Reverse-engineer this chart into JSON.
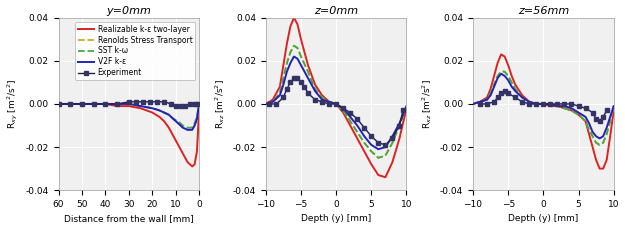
{
  "fig_width": 6.25,
  "fig_height": 2.29,
  "dpi": 100,
  "panels": [
    {
      "title": "y=0mm",
      "xlabel": "Distance from the wall [mm]",
      "ylabel": "R$_{xy}$ [m$^2$/s$^2$]",
      "xlim": [
        60,
        0
      ],
      "ylim": [
        -0.04,
        0.04
      ],
      "yticks": [
        -0.04,
        -0.02,
        0.0,
        0.02,
        0.04
      ],
      "xticks": [
        60,
        50,
        40,
        30,
        20,
        10,
        0
      ],
      "grid": true,
      "legend": true
    },
    {
      "title": "z=0mm",
      "xlabel": "Depth (y) [mm]",
      "ylabel": "R$_{xz}$ [m$^2$/s$^2$]",
      "xlim": [
        -10,
        10
      ],
      "ylim": [
        -0.04,
        0.04
      ],
      "yticks": [
        -0.04,
        -0.02,
        0.0,
        0.02,
        0.04
      ],
      "xticks": [
        -10,
        -5,
        0,
        5,
        10
      ],
      "grid": true,
      "legend": false
    },
    {
      "title": "z=56mm",
      "xlabel": "Depth (y) [mm]",
      "ylabel": "R$_{xz}$ [m$^2$/s$^2$]",
      "xlim": [
        -10,
        10
      ],
      "ylim": [
        -0.04,
        0.04
      ],
      "yticks": [
        -0.04,
        -0.02,
        0.0,
        0.02,
        0.04
      ],
      "xticks": [
        -10,
        -5,
        0,
        5,
        10
      ],
      "grid": true,
      "legend": false
    }
  ],
  "series": {
    "experiment": {
      "label": "Experiment",
      "color": "#222244",
      "linestyle": "-",
      "marker": "s",
      "markersize": 3,
      "linewidth": 1.0
    },
    "realizable": {
      "label": "Realizable k-ε two-layer",
      "color": "#dd2222",
      "linestyle": "-",
      "linewidth": 1.4
    },
    "v2f": {
      "label": "V2F k-ε",
      "color": "#2222bb",
      "linestyle": "-",
      "linewidth": 1.4
    },
    "rst": {
      "label": "Renolds Stress Transport",
      "color": "#ccaa22",
      "linestyle": "--",
      "linewidth": 1.3
    },
    "sst": {
      "label": "SST k-ω",
      "color": "#44aa44",
      "linestyle": "--",
      "linewidth": 1.3
    }
  },
  "panel1_data": {
    "exp_x": [
      60,
      55,
      50,
      45,
      40,
      35,
      30,
      27,
      24,
      21,
      18,
      15,
      12,
      10,
      8,
      6,
      4,
      2,
      1
    ],
    "exp_y": [
      0.0,
      0.0,
      0.0,
      0.0,
      0.0,
      0.0,
      0.001,
      0.001,
      0.001,
      0.001,
      0.001,
      0.001,
      0.0,
      -0.001,
      -0.001,
      -0.001,
      0.0,
      0.0,
      0.0
    ],
    "realizable_x": [
      60,
      55,
      50,
      45,
      40,
      35,
      30,
      25,
      20,
      17,
      15,
      13,
      11,
      9,
      7,
      5,
      3,
      2,
      1,
      0.5,
      0.1
    ],
    "realizable_y": [
      0.0,
      0.0,
      0.0,
      0.0,
      0.0,
      -0.001,
      -0.001,
      -0.002,
      -0.004,
      -0.006,
      -0.008,
      -0.011,
      -0.015,
      -0.019,
      -0.023,
      -0.027,
      -0.029,
      -0.028,
      -0.022,
      -0.012,
      -0.002
    ],
    "v2f_x": [
      60,
      55,
      50,
      45,
      40,
      35,
      30,
      25,
      20,
      17,
      15,
      13,
      11,
      9,
      7,
      5,
      3,
      2,
      1,
      0.5,
      0.1
    ],
    "v2f_y": [
      0.0,
      0.0,
      0.0,
      0.0,
      0.0,
      0.0,
      0.0,
      -0.001,
      -0.002,
      -0.003,
      -0.004,
      -0.005,
      -0.007,
      -0.009,
      -0.011,
      -0.012,
      -0.012,
      -0.01,
      -0.007,
      -0.003,
      -0.001
    ],
    "rst_x": [
      60,
      55,
      50,
      45,
      40,
      35,
      30,
      25,
      20,
      17,
      15,
      13,
      11,
      9,
      7,
      5,
      3,
      2,
      1,
      0.5,
      0.1
    ],
    "rst_y": [
      0.0,
      0.0,
      0.0,
      0.0,
      0.0,
      0.0,
      0.0,
      -0.001,
      -0.002,
      -0.003,
      -0.004,
      -0.005,
      -0.007,
      -0.009,
      -0.011,
      -0.012,
      -0.012,
      -0.01,
      -0.007,
      -0.003,
      -0.001
    ],
    "sst_x": [
      60,
      55,
      50,
      45,
      40,
      35,
      30,
      25,
      20,
      17,
      15,
      13,
      11,
      9,
      7,
      5,
      3,
      2,
      1,
      0.5,
      0.1
    ],
    "sst_y": [
      0.0,
      0.0,
      0.0,
      0.0,
      0.0,
      0.0,
      0.0,
      -0.001,
      -0.002,
      -0.003,
      -0.004,
      -0.005,
      -0.007,
      -0.008,
      -0.01,
      -0.011,
      -0.011,
      -0.009,
      -0.006,
      -0.003,
      -0.001
    ]
  },
  "panel2_data": {
    "exp_x": [
      -9.5,
      -8.5,
      -7.5,
      -7,
      -6.5,
      -6,
      -5.5,
      -5,
      -4.5,
      -4,
      -3,
      -2,
      -1,
      0,
      1,
      2,
      3,
      4,
      5,
      6,
      7,
      8,
      9,
      9.5
    ],
    "exp_y": [
      0.0,
      0.0,
      0.003,
      0.007,
      0.01,
      0.012,
      0.012,
      0.01,
      0.008,
      0.005,
      0.002,
      0.001,
      0.0,
      0.0,
      -0.002,
      -0.004,
      -0.007,
      -0.011,
      -0.015,
      -0.018,
      -0.019,
      -0.016,
      -0.01,
      -0.003
    ],
    "realizable_x": [
      -10,
      -9,
      -8,
      -7.5,
      -7,
      -6.5,
      -6,
      -5.5,
      -5,
      -4,
      -3,
      -2,
      -1,
      0,
      1,
      2,
      3,
      4,
      5,
      6,
      7,
      8,
      9,
      10
    ],
    "realizable_y": [
      0.0,
      0.002,
      0.008,
      0.018,
      0.028,
      0.036,
      0.04,
      0.037,
      0.03,
      0.018,
      0.009,
      0.004,
      0.001,
      0.0,
      -0.004,
      -0.01,
      -0.016,
      -0.022,
      -0.028,
      -0.033,
      -0.034,
      -0.027,
      -0.016,
      -0.002
    ],
    "v2f_x": [
      -10,
      -9,
      -8,
      -7.5,
      -7,
      -6.5,
      -6,
      -5.5,
      -5,
      -4,
      -3,
      -2,
      -1,
      0,
      1,
      2,
      3,
      4,
      5,
      6,
      7,
      8,
      9,
      10
    ],
    "v2f_y": [
      0.0,
      0.001,
      0.004,
      0.009,
      0.015,
      0.019,
      0.022,
      0.021,
      0.018,
      0.012,
      0.006,
      0.002,
      0.001,
      0.0,
      -0.002,
      -0.006,
      -0.01,
      -0.015,
      -0.019,
      -0.021,
      -0.02,
      -0.015,
      -0.009,
      -0.001
    ],
    "rst_x": [
      -10,
      -9,
      -8,
      -7.5,
      -7,
      -6.5,
      -6,
      -5.5,
      -5,
      -4,
      -3,
      -2,
      -1,
      0,
      1,
      2,
      3,
      4,
      5,
      6,
      7,
      8,
      9,
      10
    ],
    "rst_y": [
      0.0,
      0.001,
      0.005,
      0.012,
      0.019,
      0.024,
      0.027,
      0.026,
      0.022,
      0.015,
      0.007,
      0.003,
      0.001,
      0.0,
      -0.003,
      -0.008,
      -0.013,
      -0.018,
      -0.022,
      -0.025,
      -0.024,
      -0.018,
      -0.01,
      -0.001
    ],
    "sst_x": [
      -10,
      -9,
      -8,
      -7.5,
      -7,
      -6.5,
      -6,
      -5.5,
      -5,
      -4,
      -3,
      -2,
      -1,
      0,
      1,
      2,
      3,
      4,
      5,
      6,
      7,
      8,
      9,
      10
    ],
    "sst_y": [
      0.0,
      0.001,
      0.005,
      0.012,
      0.019,
      0.024,
      0.027,
      0.026,
      0.022,
      0.015,
      0.007,
      0.003,
      0.001,
      0.0,
      -0.003,
      -0.008,
      -0.013,
      -0.018,
      -0.022,
      -0.025,
      -0.024,
      -0.018,
      -0.01,
      -0.001
    ]
  },
  "panel3_data": {
    "exp_x": [
      -9,
      -8,
      -7,
      -6.5,
      -6,
      -5.5,
      -5,
      -4,
      -3,
      -2,
      -1,
      0,
      1,
      2,
      3,
      4,
      5,
      6,
      7,
      7.5,
      8,
      8.5,
      9
    ],
    "exp_y": [
      0.0,
      0.0,
      0.001,
      0.003,
      0.005,
      0.006,
      0.005,
      0.003,
      0.001,
      0.0,
      0.0,
      0.0,
      0.0,
      0.0,
      0.0,
      0.0,
      -0.001,
      -0.002,
      -0.004,
      -0.007,
      -0.008,
      -0.006,
      -0.003
    ],
    "realizable_x": [
      -10,
      -9,
      -8,
      -7.5,
      -7,
      -6.5,
      -6,
      -5.5,
      -5,
      -4.5,
      -4,
      -3,
      -2,
      -1,
      0,
      1,
      2,
      3,
      4,
      5,
      6,
      6.5,
      7,
      7.5,
      8,
      8.5,
      9,
      9.5,
      10
    ],
    "realizable_y": [
      0.0,
      0.001,
      0.003,
      0.007,
      0.013,
      0.019,
      0.023,
      0.022,
      0.018,
      0.013,
      0.009,
      0.004,
      0.001,
      0.0,
      0.0,
      -0.001,
      -0.001,
      -0.002,
      -0.003,
      -0.005,
      -0.008,
      -0.014,
      -0.02,
      -0.026,
      -0.03,
      -0.03,
      -0.026,
      -0.015,
      -0.003
    ],
    "v2f_x": [
      -10,
      -9,
      -8,
      -7.5,
      -7,
      -6.5,
      -6,
      -5.5,
      -5,
      -4.5,
      -4,
      -3,
      -2,
      -1,
      0,
      1,
      2,
      3,
      4,
      5,
      6,
      6.5,
      7,
      7.5,
      8,
      8.5,
      9,
      9.5,
      10
    ],
    "v2f_y": [
      0.0,
      0.001,
      0.002,
      0.004,
      0.008,
      0.012,
      0.014,
      0.013,
      0.011,
      0.008,
      0.006,
      0.003,
      0.001,
      0.0,
      0.0,
      0.0,
      -0.001,
      -0.001,
      -0.002,
      -0.004,
      -0.006,
      -0.009,
      -0.013,
      -0.015,
      -0.016,
      -0.015,
      -0.011,
      -0.006,
      -0.001
    ],
    "rst_x": [
      -10,
      -9,
      -8,
      -7.5,
      -7,
      -6.5,
      -6,
      -5.5,
      -5,
      -4.5,
      -4,
      -3,
      -2,
      -1,
      0,
      1,
      2,
      3,
      4,
      5,
      6,
      6.5,
      7,
      7.5,
      8,
      8.5,
      9,
      9.5,
      10
    ],
    "rst_y": [
      0.0,
      0.001,
      0.002,
      0.005,
      0.009,
      0.013,
      0.015,
      0.015,
      0.013,
      0.01,
      0.007,
      0.003,
      0.001,
      0.0,
      0.0,
      0.0,
      -0.001,
      -0.002,
      -0.003,
      -0.005,
      -0.008,
      -0.012,
      -0.015,
      -0.018,
      -0.019,
      -0.018,
      -0.014,
      -0.008,
      -0.001
    ],
    "sst_x": [
      -10,
      -9,
      -8,
      -7.5,
      -7,
      -6.5,
      -6,
      -5.5,
      -5,
      -4.5,
      -4,
      -3,
      -2,
      -1,
      0,
      1,
      2,
      3,
      4,
      5,
      6,
      6.5,
      7,
      7.5,
      8,
      8.5,
      9,
      9.5,
      10
    ],
    "sst_y": [
      0.0,
      0.001,
      0.002,
      0.005,
      0.009,
      0.013,
      0.015,
      0.015,
      0.013,
      0.01,
      0.007,
      0.003,
      0.001,
      0.0,
      0.0,
      0.0,
      -0.001,
      -0.002,
      -0.003,
      -0.005,
      -0.008,
      -0.012,
      -0.015,
      -0.018,
      -0.019,
      -0.018,
      -0.014,
      -0.008,
      -0.001
    ]
  },
  "background_color": "#f0f0f0"
}
